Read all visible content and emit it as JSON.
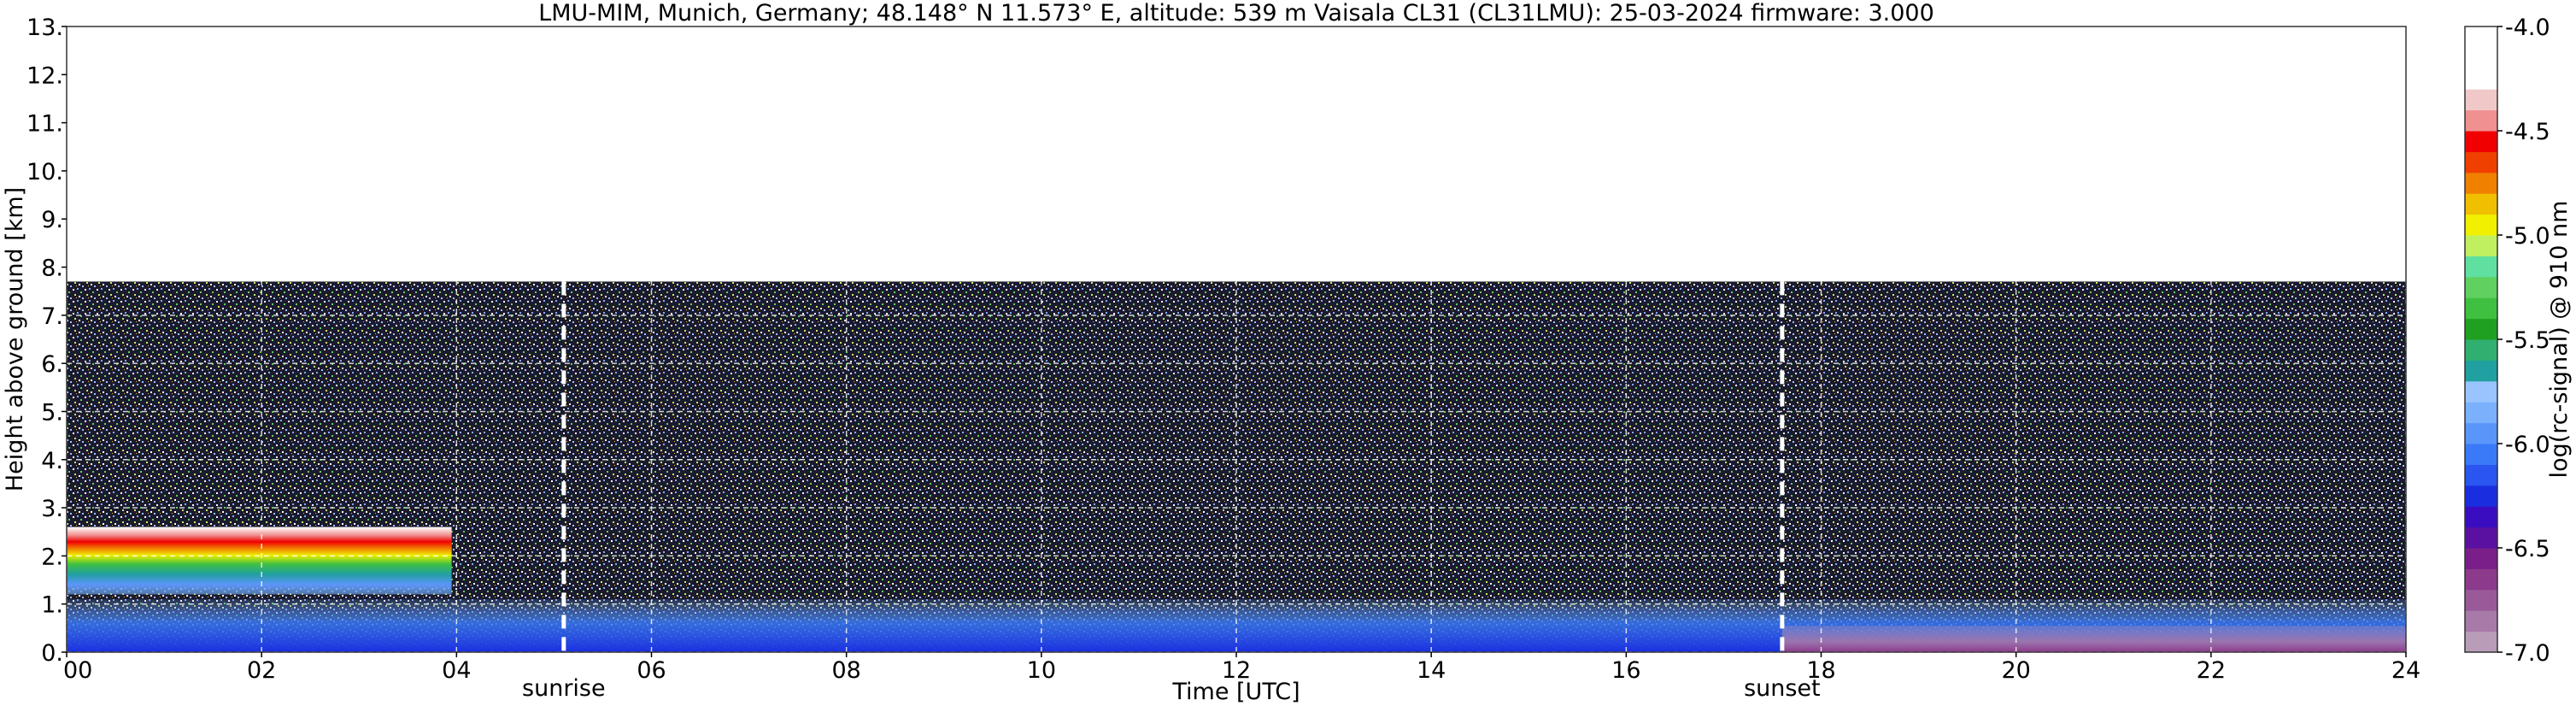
{
  "chart_data": {
    "type": "heatmap",
    "title": "LMU-MIM, Munich, Germany; 48.148° N 11.573° E, altitude: 539 m    Vaisala CL31 (CL31LMU): 25-03-2024    firmware: 3.000",
    "xlabel": "Time [UTC]",
    "ylabel": "Height above ground [km]",
    "xlim": [
      0,
      24
    ],
    "ylim": [
      0,
      13
    ],
    "x_ticks": [
      0,
      2,
      4,
      6,
      8,
      10,
      12,
      14,
      16,
      18,
      20,
      22,
      24
    ],
    "x_tick_labels": [
      "00",
      "02",
      "04",
      "06",
      "08",
      "10",
      "12",
      "14",
      "16",
      "18",
      "20",
      "22",
      "24"
    ],
    "y_ticks": [
      0,
      1,
      2,
      3,
      4,
      5,
      6,
      7,
      8,
      9,
      10,
      11,
      12,
      13
    ],
    "y_tick_labels": [
      "0.",
      "1.",
      "2.",
      "3.",
      "4.",
      "5.",
      "6.",
      "7.",
      "8.",
      "9.",
      "10.",
      "11.",
      "12.",
      "13."
    ],
    "grid": true,
    "data_ceiling_km": 7.7,
    "annotations": [
      {
        "label": "sunrise",
        "time_utc": 5.1
      },
      {
        "label": "sunset",
        "time_utc": 17.6
      }
    ],
    "features": [
      {
        "name": "low cloud layer",
        "t_start": 0.0,
        "t_end": 3.95,
        "base_km": 1.2,
        "top_km": 2.6
      },
      {
        "name": "boundary layer aerosol",
        "t_start": 0.0,
        "t_end": 24.0,
        "base_km": 0.0,
        "top_km": 1.1
      },
      {
        "name": "evening residual layer",
        "t_start": 17.6,
        "t_end": 24.0,
        "base_km": 0.0,
        "top_km": 0.55
      }
    ],
    "colorbar": {
      "label": "log(rc-signal) @ 910 nm",
      "min": -7.0,
      "max": -4.0,
      "ticks": [
        -7.0,
        -6.5,
        -6.0,
        -5.5,
        -5.0,
        -4.5,
        -4.0
      ],
      "tick_labels": [
        "-7.0",
        "-6.5",
        "-6.0",
        "-5.5",
        "-5.0",
        "-4.5",
        "-4.0"
      ],
      "colors": [
        "#b89cb8",
        "#a87aa8",
        "#9a5a9a",
        "#8c3a8c",
        "#7a1f8a",
        "#5a10a0",
        "#3a0ec0",
        "#1a2ee0",
        "#2a55f0",
        "#3a7af8",
        "#5a95fa",
        "#7ab0fc",
        "#9ac4fe",
        "#20a0a0",
        "#30b070",
        "#20a020",
        "#40c040",
        "#60d060",
        "#60e0a0",
        "#c0f060",
        "#f0f000",
        "#f0c000",
        "#f08000",
        "#f04000",
        "#f00000",
        "#f09090",
        "#f0c8c8",
        "#ffffff",
        "#ffffff",
        "#ffffff"
      ]
    }
  }
}
